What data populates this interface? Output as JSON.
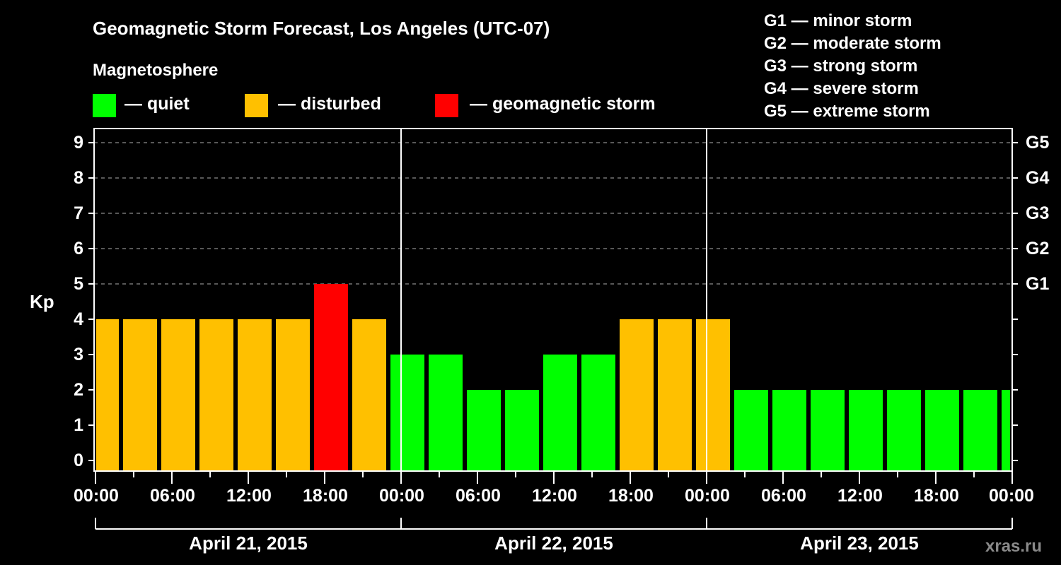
{
  "header": {
    "title": "Geomagnetic Storm Forecast, Los Angeles (UTC-07)",
    "subtitle": "Magnetosphere"
  },
  "legend": {
    "items": [
      {
        "label": "— quiet",
        "color": "#00ff00"
      },
      {
        "label": "— disturbed",
        "color": "#ffc000"
      },
      {
        "label": "— geomagnetic storm",
        "color": "#ff0000"
      }
    ]
  },
  "g_scale": [
    "G1 — minor storm",
    "G2 — moderate storm",
    "G3 — strong storm",
    "G4 — severe storm",
    "G5 — extreme storm"
  ],
  "axes": {
    "ylabel": "Kp",
    "yticks": [
      "0",
      "1",
      "2",
      "3",
      "4",
      "5",
      "6",
      "7",
      "8",
      "9"
    ],
    "right_ticks": [
      "G1",
      "G2",
      "G3",
      "G4",
      "G5"
    ],
    "xticks": [
      "00:00",
      "06:00",
      "12:00",
      "18:00",
      "00:00",
      "06:00",
      "12:00",
      "18:00",
      "00:00",
      "06:00",
      "12:00",
      "18:00",
      "00:00"
    ],
    "days": [
      "April 21, 2015",
      "April 22, 2015",
      "April 23, 2015"
    ]
  },
  "watermark": "xras.ru",
  "chart_data": {
    "type": "bar",
    "title": "Geomagnetic Storm Forecast, Los Angeles (UTC-07)",
    "subtitle": "Magnetosphere",
    "xlabel": "",
    "ylabel": "Kp",
    "ylim": [
      0,
      9
    ],
    "grid": true,
    "legend_position": "top",
    "categories": [
      "Apr 21 00:00",
      "Apr 21 02:00",
      "Apr 21 05:00",
      "Apr 21 08:00",
      "Apr 21 11:00",
      "Apr 21 14:00",
      "Apr 21 17:00",
      "Apr 21 20:00",
      "Apr 21 23:00",
      "Apr 22 02:00",
      "Apr 22 05:00",
      "Apr 22 08:00",
      "Apr 22 11:00",
      "Apr 22 14:00",
      "Apr 22 17:00",
      "Apr 22 20:00",
      "Apr 22 23:00",
      "Apr 23 02:00",
      "Apr 23 05:00",
      "Apr 23 08:00",
      "Apr 23 11:00",
      "Apr 23 14:00",
      "Apr 23 17:00",
      "Apr 23 20:00",
      "Apr 23 23:00"
    ],
    "starts_h": [
      0,
      2,
      5,
      8,
      11,
      14,
      17,
      20,
      23,
      26,
      29,
      32,
      35,
      38,
      41,
      44,
      47,
      50,
      53,
      56,
      59,
      62,
      65,
      68,
      71
    ],
    "ends_h": [
      2,
      5,
      8,
      11,
      14,
      17,
      20,
      23,
      26,
      29,
      32,
      35,
      38,
      41,
      44,
      47,
      50,
      53,
      56,
      59,
      62,
      65,
      68,
      71,
      72
    ],
    "values": [
      4,
      4,
      4,
      4,
      4,
      4,
      5,
      4,
      3,
      3,
      2,
      2,
      3,
      3,
      4,
      4,
      4,
      2,
      2,
      2,
      2,
      2,
      2,
      2,
      2
    ],
    "status": [
      "disturbed",
      "disturbed",
      "disturbed",
      "disturbed",
      "disturbed",
      "disturbed",
      "storm",
      "disturbed",
      "quiet",
      "quiet",
      "quiet",
      "quiet",
      "quiet",
      "quiet",
      "disturbed",
      "disturbed",
      "disturbed",
      "quiet",
      "quiet",
      "quiet",
      "quiet",
      "quiet",
      "quiet",
      "quiet",
      "quiet"
    ],
    "colors": {
      "quiet": "#00ff00",
      "disturbed": "#ffc000",
      "storm": "#ff0000"
    },
    "g_levels": {
      "G1": 5,
      "G2": 6,
      "G3": 7,
      "G4": 8,
      "G5": 9
    }
  }
}
